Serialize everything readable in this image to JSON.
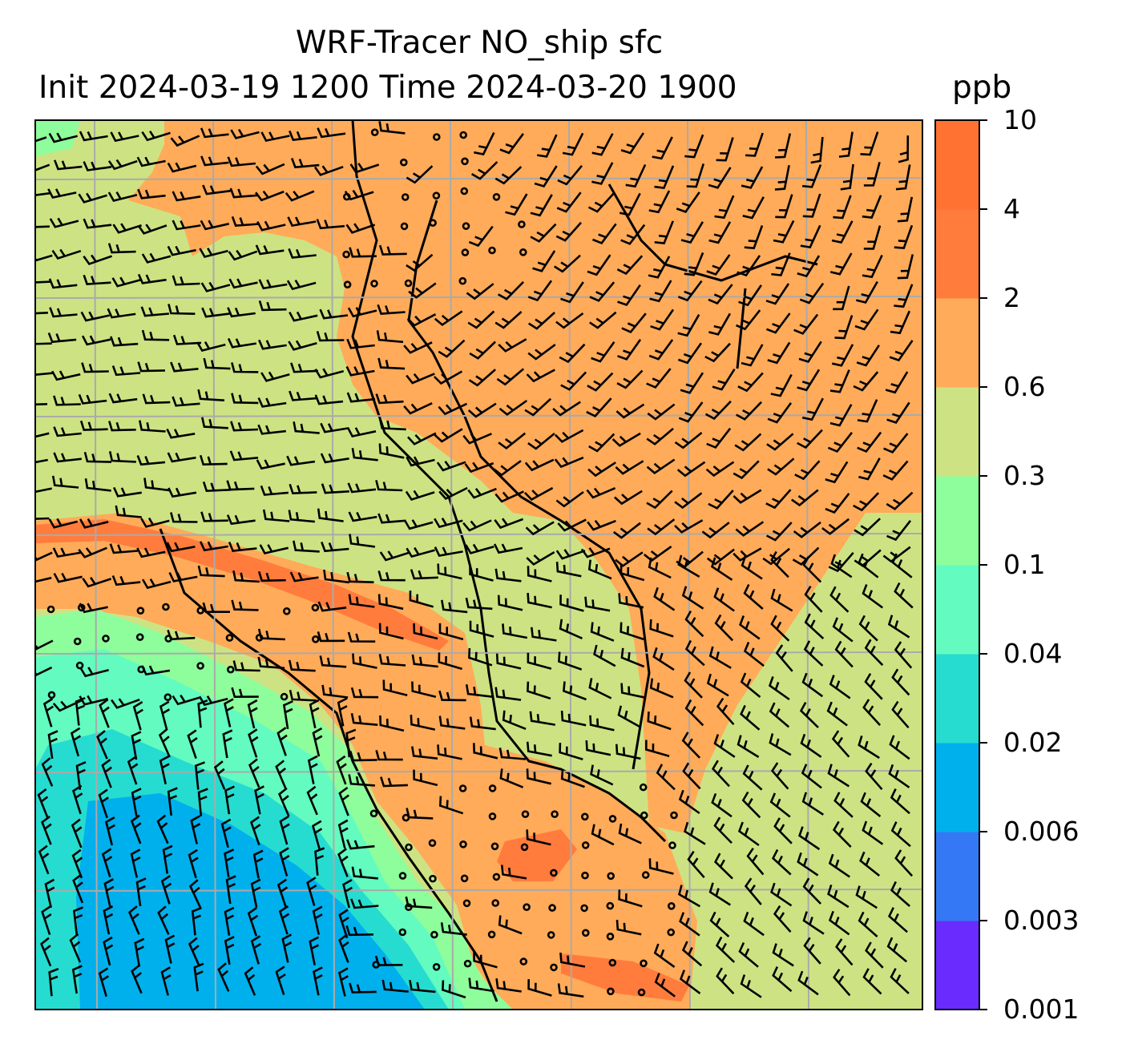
{
  "map": {
    "title_line1": "WRF-Tracer NO_ship sfc",
    "title_line2": "Init 2024-03-19 1200 Time 2024-03-20 1900",
    "colorbar_unit": "ppb",
    "colorbar_levels": [
      "0.001",
      "0.003",
      "0.006",
      "0.02",
      "0.04",
      "0.1",
      "0.3",
      "0.6",
      "2",
      "4",
      "10"
    ],
    "colorbar_colors": [
      "#6a2bff",
      "#3478f5",
      "#00b0ec",
      "#26dcd0",
      "#63fbc0",
      "#8efd9b",
      "#cde383",
      "#ffab59",
      "#ff7c3d",
      "#ff7232",
      "#ff2717"
    ],
    "colors": {
      "blue": "#00b0ec",
      "cyan": "#26dcd0",
      "aqua": "#63fbc0",
      "mint": "#8efd9b",
      "olive": "#cde383",
      "orange": "#ffab59",
      "red_orange": "#ff7c3d",
      "gridline": "#aaaaaa",
      "coastline": "#000000"
    },
    "overlays": [
      "wind-barbs",
      "coastlines",
      "lat-lon-grid"
    ]
  }
}
